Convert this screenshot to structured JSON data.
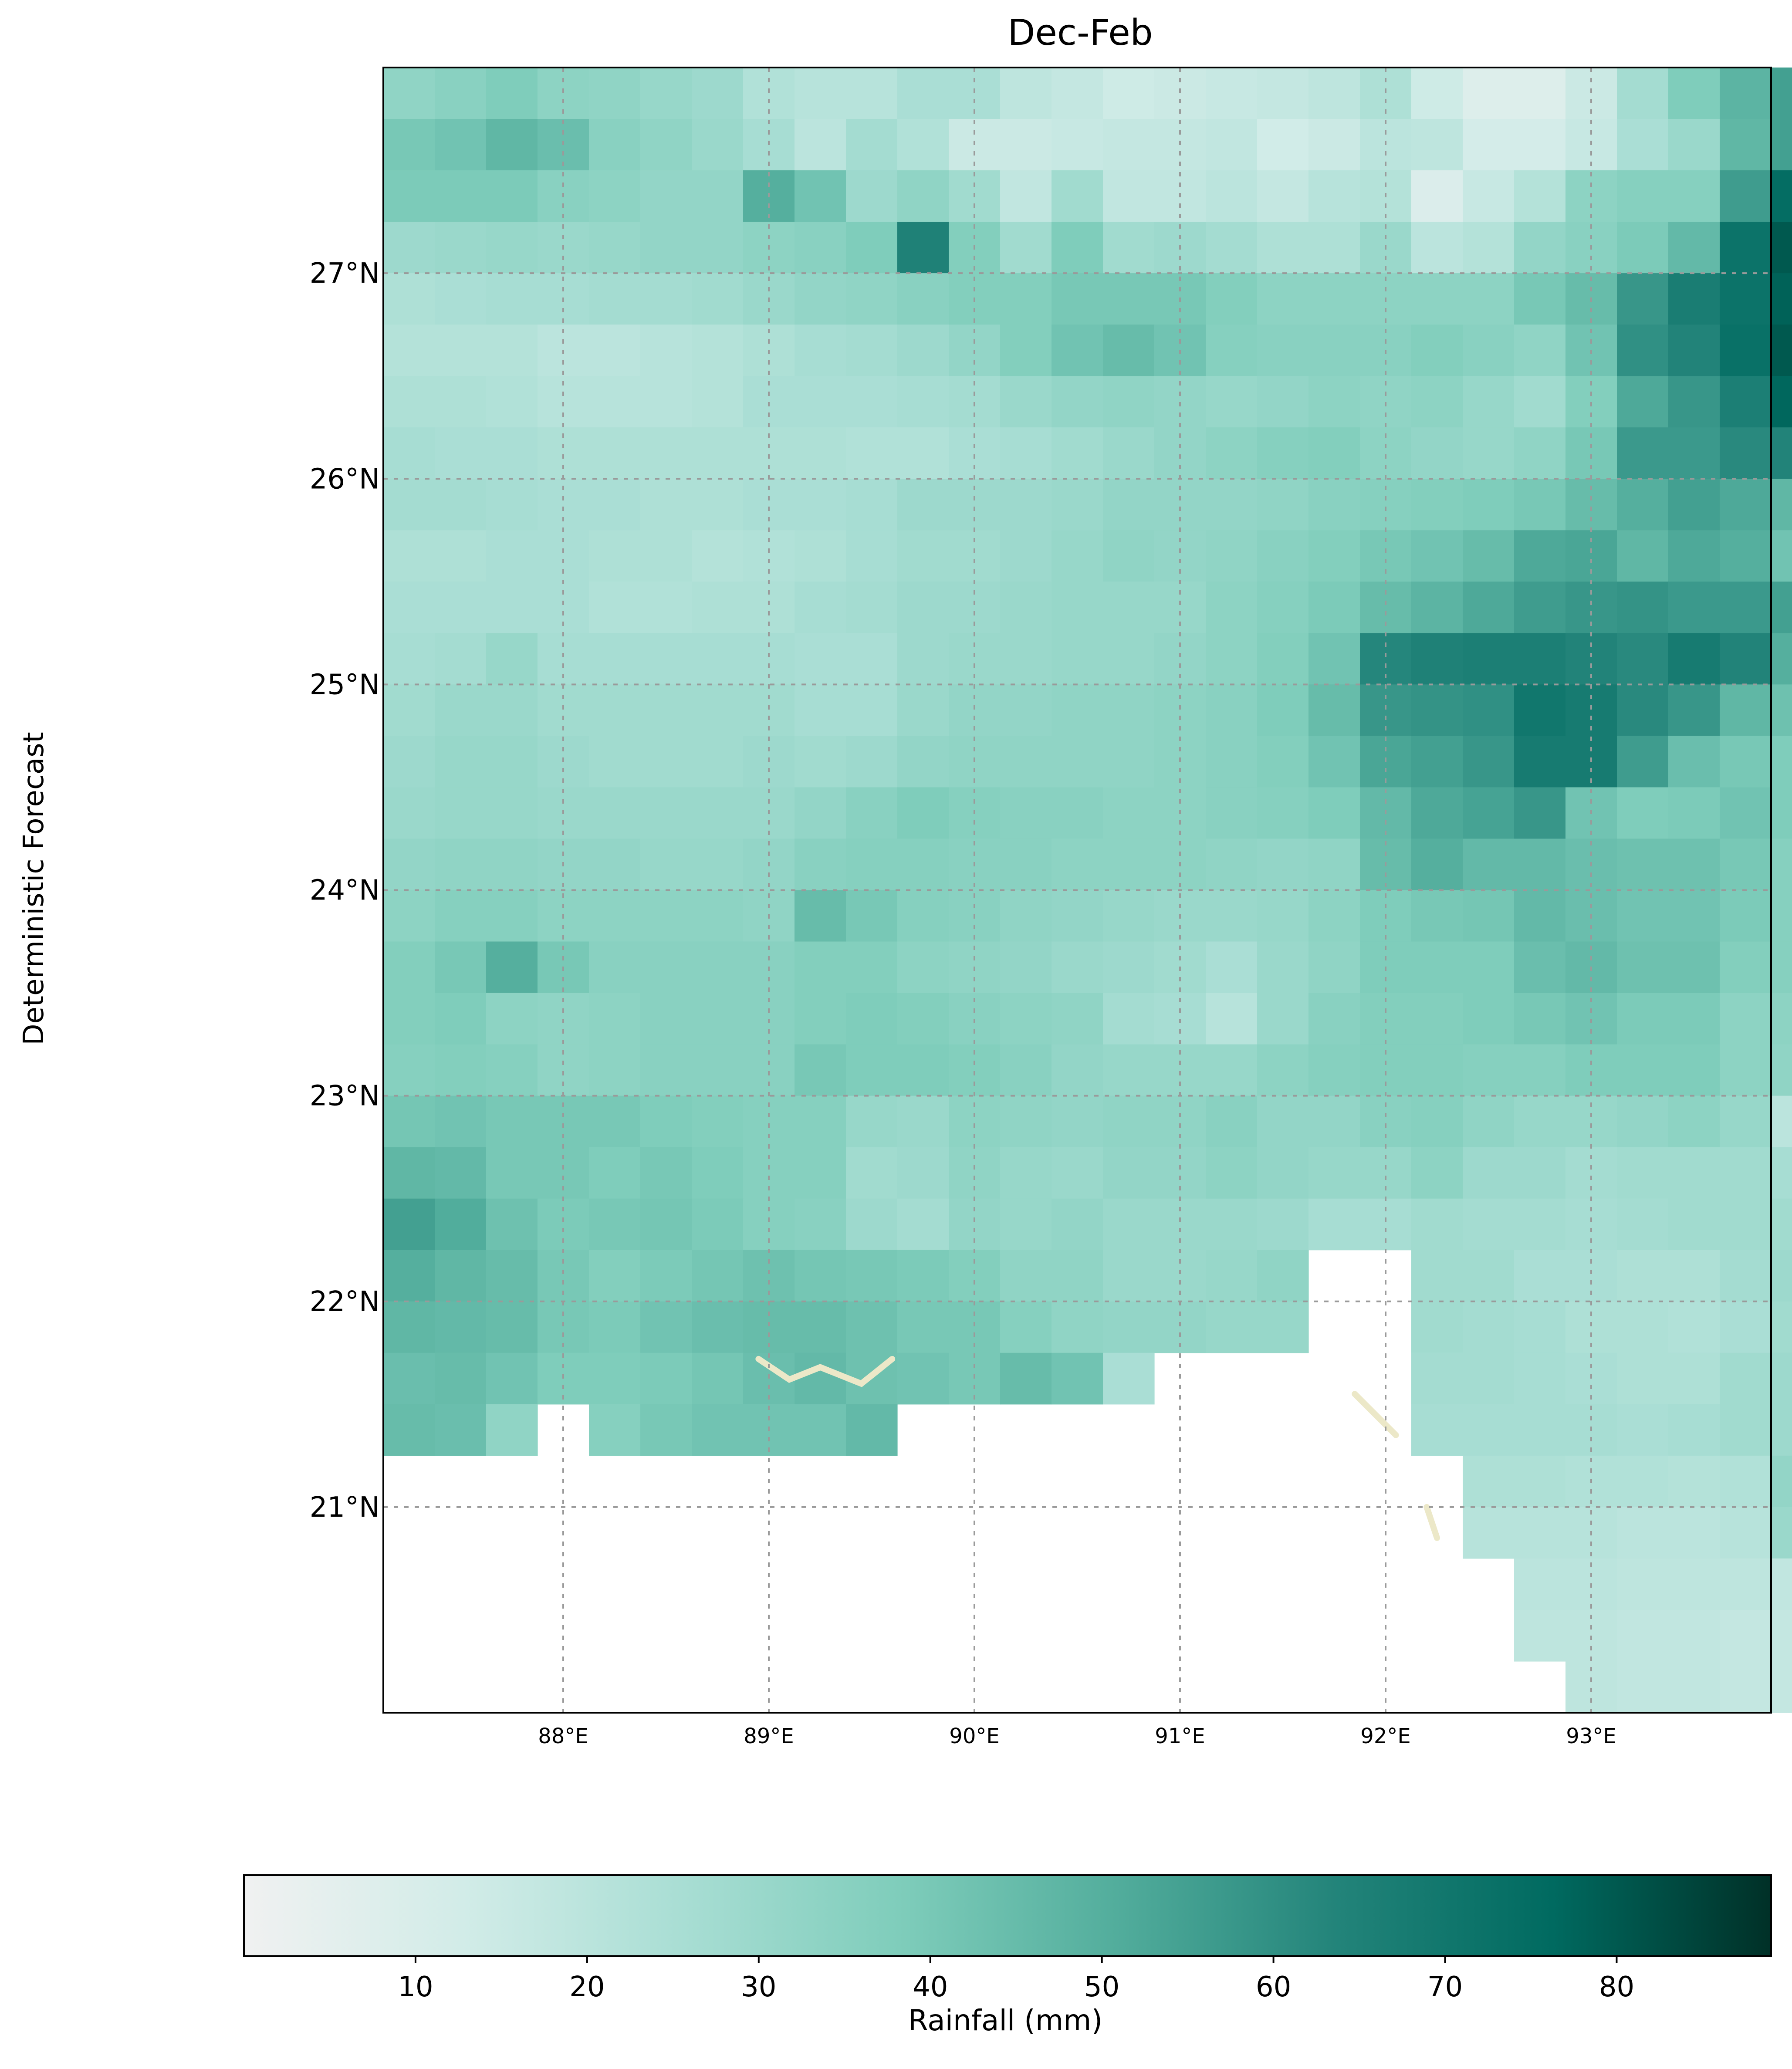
{
  "figure": {
    "title": "Dec-Feb",
    "row_label": "Deterministic Forecast",
    "colorbar_label": "Rainfall (mm)"
  },
  "colormap": {
    "name": "BuGn-like",
    "stops": [
      "#f0f1f1",
      "#d2ece8",
      "#a9ded4",
      "#7fcdbb",
      "#52ad9c",
      "#23847a",
      "#006a60",
      "#003027"
    ],
    "range": [
      0,
      89
    ],
    "ticks": [
      10,
      20,
      30,
      40,
      50,
      60,
      70,
      80
    ]
  },
  "chart_data": {
    "type": "heatmap",
    "title": "Dec-Feb",
    "xlabel": "",
    "ylabel": "",
    "units": "Rainfall (mm)",
    "x_ticks": [
      "88°E",
      "89°E",
      "90°E",
      "91°E",
      "92°E",
      "93°E"
    ],
    "x_tick_values": [
      88,
      89,
      90,
      91,
      92,
      93
    ],
    "y_ticks": [
      "27°N",
      "26°N",
      "25°N",
      "24°N",
      "23°N",
      "22°N",
      "21°N"
    ],
    "y_tick_values": [
      27,
      26,
      25,
      24,
      23,
      22,
      21
    ],
    "xlim": [
      87.125,
      93.875
    ],
    "ylim": [
      20.0,
      28.0
    ],
    "grid": true,
    "cell_size_deg": 0.25,
    "lon_start": 87.125,
    "lat_top": 28.0,
    "nodata": "null (ocean / outside domain)",
    "grid_values": [
      [
        33,
        35,
        38,
        34,
        33,
        31,
        29,
        23,
        21,
        21,
        25,
        25,
        19,
        17,
        14,
        15,
        16,
        17,
        19,
        24,
        14,
        8,
        8,
        15,
        27,
        38,
        48,
        55
      ],
      [
        40,
        42,
        47,
        44,
        35,
        33,
        30,
        26,
        20,
        27,
        23,
        15,
        15,
        16,
        17,
        17,
        18,
        13,
        15,
        20,
        19,
        12,
        12,
        16,
        25,
        30,
        47,
        55
      ],
      [
        39,
        39,
        39,
        35,
        34,
        32,
        32,
        50,
        42,
        29,
        33,
        28,
        18,
        28,
        18,
        18,
        20,
        17,
        21,
        22,
        9,
        16,
        22,
        34,
        36,
        36,
        56,
        75
      ],
      [
        29,
        30,
        31,
        30,
        31,
        32,
        32,
        34,
        35,
        38,
        65,
        37,
        28,
        38,
        28,
        29,
        27,
        24,
        24,
        30,
        20,
        22,
        32,
        35,
        39,
        46,
        72,
        80
      ],
      [
        24,
        25,
        26,
        26,
        27,
        27,
        28,
        30,
        32,
        33,
        35,
        37,
        37,
        40,
        40,
        40,
        37,
        34,
        34,
        34,
        34,
        34,
        40,
        45,
        58,
        67,
        72,
        78
      ],
      [
        22,
        22,
        22,
        20,
        20,
        21,
        22,
        24,
        26,
        27,
        29,
        32,
        37,
        42,
        45,
        42,
        36,
        35,
        35,
        35,
        37,
        35,
        33,
        42,
        60,
        64,
        73,
        80
      ],
      [
        24,
        24,
        23,
        21,
        21,
        21,
        22,
        25,
        25,
        25,
        26,
        27,
        30,
        32,
        33,
        32,
        31,
        32,
        34,
        33,
        34,
        31,
        28,
        37,
        52,
        58,
        66,
        77
      ],
      [
        26,
        25,
        25,
        24,
        24,
        24,
        24,
        24,
        24,
        23,
        23,
        25,
        26,
        28,
        30,
        32,
        34,
        36,
        37,
        34,
        32,
        31,
        33,
        40,
        57,
        57,
        62,
        64
      ],
      [
        27,
        27,
        26,
        25,
        25,
        24,
        24,
        25,
        25,
        26,
        29,
        29,
        29,
        30,
        32,
        32,
        32,
        33,
        35,
        36,
        37,
        38,
        40,
        45,
        50,
        55,
        52,
        47
      ],
      [
        24,
        24,
        25,
        25,
        24,
        24,
        22,
        23,
        24,
        26,
        28,
        28,
        29,
        31,
        33,
        32,
        33,
        35,
        37,
        40,
        42,
        45,
        52,
        53,
        47,
        52,
        50,
        42
      ],
      [
        25,
        25,
        25,
        25,
        23,
        23,
        24,
        24,
        26,
        27,
        29,
        29,
        30,
        31,
        31,
        31,
        34,
        36,
        39,
        45,
        48,
        52,
        56,
        58,
        59,
        57,
        57,
        55
      ],
      [
        26,
        27,
        31,
        26,
        26,
        26,
        26,
        26,
        25,
        25,
        29,
        30,
        30,
        31,
        31,
        32,
        34,
        37,
        42,
        63,
        65,
        66,
        66,
        64,
        62,
        68,
        64,
        50
      ],
      [
        28,
        30,
        30,
        28,
        28,
        28,
        28,
        28,
        26,
        26,
        30,
        32,
        32,
        33,
        33,
        34,
        35,
        38,
        45,
        58,
        59,
        60,
        70,
        68,
        62,
        58,
        47,
        43
      ],
      [
        29,
        31,
        31,
        29,
        28,
        28,
        28,
        29,
        28,
        29,
        32,
        33,
        33,
        33,
        33,
        34,
        35,
        37,
        42,
        53,
        55,
        58,
        68,
        68,
        56,
        44,
        40,
        38
      ],
      [
        30,
        31,
        31,
        30,
        30,
        30,
        30,
        30,
        32,
        35,
        38,
        36,
        35,
        35,
        34,
        34,
        35,
        36,
        38,
        46,
        52,
        54,
        58,
        42,
        38,
        39,
        42,
        38
      ],
      [
        32,
        33,
        33,
        32,
        32,
        31,
        31,
        32,
        35,
        36,
        36,
        35,
        35,
        34,
        34,
        34,
        33,
        32,
        33,
        45,
        50,
        46,
        46,
        44,
        43,
        43,
        40,
        36
      ],
      [
        34,
        36,
        36,
        34,
        34,
        34,
        34,
        33,
        45,
        40,
        36,
        35,
        33,
        32,
        31,
        30,
        30,
        31,
        34,
        38,
        40,
        41,
        46,
        44,
        42,
        42,
        39,
        36
      ],
      [
        37,
        40,
        50,
        40,
        35,
        35,
        35,
        35,
        37,
        37,
        34,
        33,
        32,
        30,
        29,
        28,
        25,
        30,
        33,
        38,
        38,
        38,
        44,
        46,
        43,
        43,
        37,
        36
      ],
      [
        37,
        38,
        34,
        33,
        34,
        35,
        35,
        35,
        37,
        38,
        37,
        35,
        34,
        33,
        27,
        26,
        21,
        30,
        35,
        37,
        37,
        38,
        40,
        42,
        39,
        39,
        34,
        34
      ],
      [
        36,
        37,
        36,
        33,
        34,
        35,
        35,
        35,
        40,
        38,
        38,
        37,
        35,
        32,
        31,
        31,
        31,
        34,
        36,
        37,
        37,
        36,
        36,
        38,
        38,
        38,
        34,
        33
      ],
      [
        41,
        42,
        40,
        40,
        40,
        38,
        37,
        36,
        36,
        31,
        30,
        34,
        33,
        32,
        33,
        33,
        35,
        32,
        32,
        35,
        36,
        33,
        31,
        31,
        32,
        34,
        31,
        20
      ],
      [
        47,
        46,
        40,
        40,
        38,
        40,
        38,
        36,
        36,
        28,
        29,
        33,
        31,
        30,
        32,
        32,
        34,
        32,
        31,
        31,
        34,
        29,
        29,
        27,
        28,
        28,
        28,
        26
      ],
      [
        55,
        51,
        43,
        39,
        40,
        41,
        39,
        36,
        35,
        29,
        27,
        32,
        31,
        32,
        30,
        30,
        30,
        29,
        26,
        26,
        28,
        27,
        27,
        26,
        27,
        28,
        28,
        28
      ],
      [
        50,
        47,
        45,
        40,
        37,
        39,
        41,
        43,
        41,
        40,
        39,
        37,
        33,
        33,
        30,
        30,
        31,
        33,
        null,
        null,
        28,
        28,
        25,
        25,
        24,
        24,
        27,
        29
      ],
      [
        47,
        46,
        45,
        40,
        39,
        42,
        44,
        45,
        45,
        43,
        40,
        40,
        36,
        33,
        32,
        32,
        31,
        31,
        null,
        null,
        28,
        27,
        26,
        24,
        24,
        23,
        25,
        28
      ],
      [
        44,
        45,
        42,
        38,
        38,
        39,
        41,
        44,
        46,
        43,
        42,
        40,
        45,
        42,
        25,
        null,
        null,
        null,
        null,
        null,
        27,
        27,
        26,
        25,
        24,
        24,
        28,
        29
      ],
      [
        45,
        44,
        33,
        null,
        36,
        40,
        42,
        42,
        42,
        46,
        null,
        null,
        null,
        null,
        null,
        null,
        null,
        null,
        null,
        null,
        26,
        26,
        26,
        26,
        25,
        26,
        28,
        29
      ],
      [
        null,
        null,
        null,
        null,
        null,
        null,
        null,
        null,
        null,
        null,
        null,
        null,
        null,
        null,
        null,
        null,
        null,
        null,
        null,
        null,
        null,
        24,
        24,
        23,
        23,
        22,
        23,
        32
      ],
      [
        null,
        null,
        null,
        null,
        null,
        null,
        null,
        null,
        null,
        null,
        null,
        null,
        null,
        null,
        null,
        null,
        null,
        null,
        null,
        null,
        null,
        21,
        21,
        21,
        20,
        20,
        21,
        30
      ],
      [
        null,
        null,
        null,
        null,
        null,
        null,
        null,
        null,
        null,
        null,
        null,
        null,
        null,
        null,
        null,
        null,
        null,
        null,
        null,
        null,
        null,
        null,
        20,
        20,
        19,
        19,
        19,
        18
      ],
      [
        null,
        null,
        null,
        null,
        null,
        null,
        null,
        null,
        null,
        null,
        null,
        null,
        null,
        null,
        null,
        null,
        null,
        null,
        null,
        null,
        null,
        null,
        19,
        19,
        18,
        18,
        17,
        17
      ],
      [
        null,
        null,
        null,
        null,
        null,
        null,
        null,
        null,
        null,
        null,
        null,
        null,
        null,
        null,
        null,
        null,
        null,
        null,
        null,
        null,
        null,
        null,
        null,
        19,
        18,
        18,
        17,
        17
      ]
    ]
  }
}
